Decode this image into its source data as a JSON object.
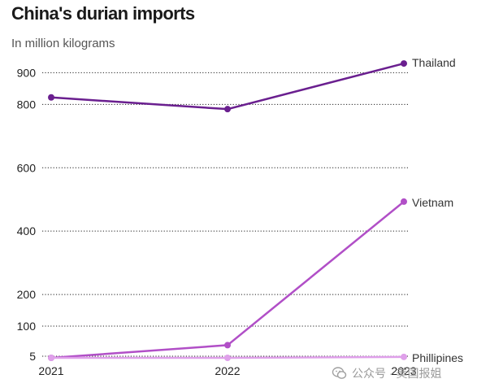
{
  "title": "China's durian imports",
  "subtitle": "In million kilograms",
  "watermark": {
    "text": "公众号 · 美国报姐",
    "icon": "wechat-icon"
  },
  "chart_data": {
    "type": "line",
    "x": [
      "2021",
      "2022",
      "2023"
    ],
    "yticks": [
      5,
      100,
      200,
      400,
      600,
      800,
      900
    ],
    "ylim": [
      0,
      960
    ],
    "grid": true,
    "series": [
      {
        "name": "Thailand",
        "values": [
          822,
          785,
          929
        ],
        "color": "#6a1f8f"
      },
      {
        "name": "Vietnam",
        "values": [
          0,
          40,
          493
        ],
        "color": "#b14fc7"
      },
      {
        "name": "Phillipines",
        "values": [
          0,
          0,
          3
        ],
        "color": "#dfa0ea"
      }
    ]
  }
}
